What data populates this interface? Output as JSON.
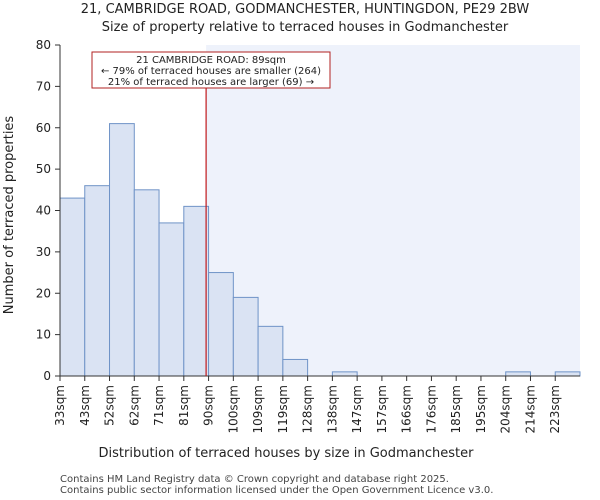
{
  "chart_data": {
    "type": "bar",
    "title_line1": "21, CAMBRIDGE ROAD, GODMANCHESTER, HUNTINGDON, PE29 2BW",
    "title_line2": "Size of property relative to terraced houses in Godmanchester",
    "xlabel": "Distribution of terraced houses by size in Godmanchester",
    "ylabel": "Number of terraced properties",
    "categories": [
      "33sqm",
      "43sqm",
      "52sqm",
      "62sqm",
      "71sqm",
      "81sqm",
      "90sqm",
      "100sqm",
      "109sqm",
      "119sqm",
      "128sqm",
      "138sqm",
      "147sqm",
      "157sqm",
      "166sqm",
      "176sqm",
      "185sqm",
      "195sqm",
      "204sqm",
      "214sqm",
      "223sqm"
    ],
    "values": [
      43,
      46,
      61,
      45,
      37,
      41,
      25,
      19,
      12,
      4,
      0,
      1,
      0,
      0,
      0,
      0,
      0,
      0,
      1,
      0,
      1
    ],
    "ylim": [
      0,
      80
    ],
    "yticks": [
      0,
      10,
      20,
      30,
      40,
      50,
      60,
      70,
      80
    ],
    "property_marker": {
      "bin_position": 5.9
    },
    "annotation": {
      "line1": "21 CAMBRIDGE ROAD: 89sqm",
      "line2": "← 79% of terraced houses are smaller (264)",
      "line3": "21% of terraced houses are larger (69) →"
    },
    "colors": {
      "bar_fill": "#dae3f3",
      "bar_stroke": "#6f93c7",
      "right_shade": "#eef2fb",
      "marker": "#c0181b",
      "annotation_border": "#b22222"
    }
  },
  "footer": {
    "line1": "Contains HM Land Registry data © Crown copyright and database right 2025.",
    "line2": "Contains public sector information licensed under the Open Government Licence v3.0."
  }
}
